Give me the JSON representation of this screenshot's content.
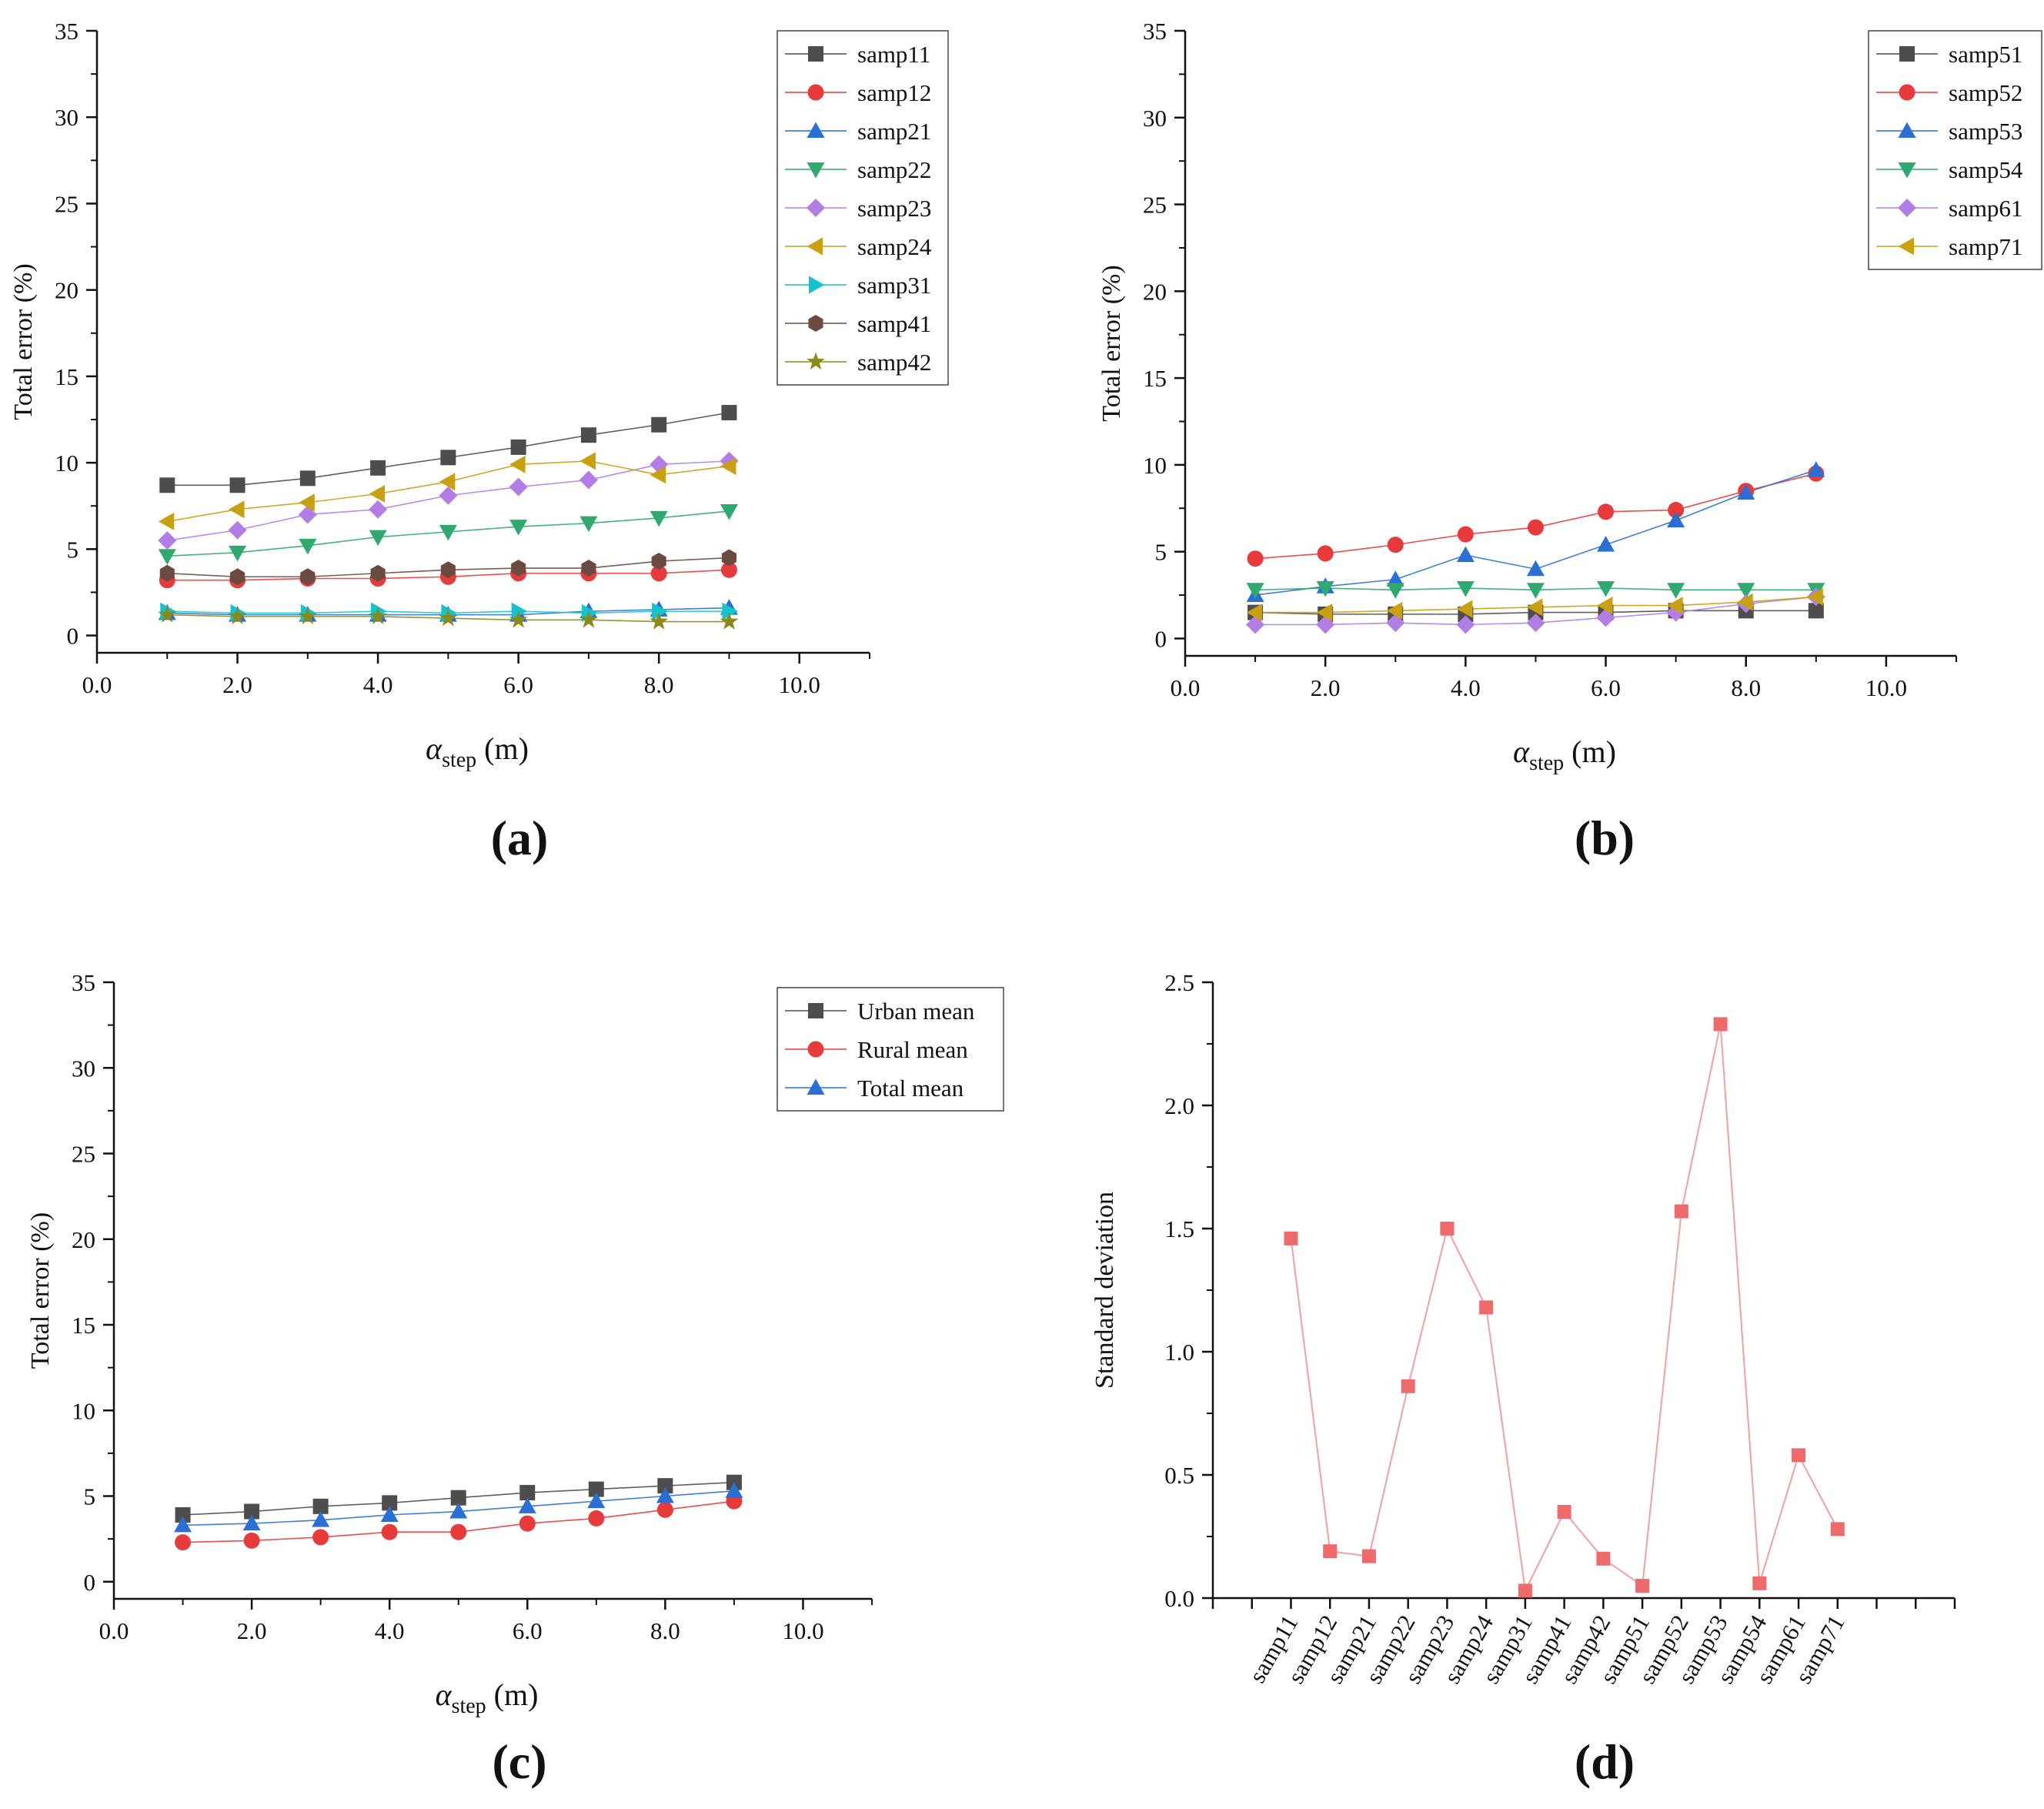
{
  "figure": {
    "panel_labels": [
      "(a)",
      "(b)",
      "(c)",
      "(d)"
    ]
  },
  "chart_data": [
    {
      "panel": "a",
      "type": "line",
      "title": "",
      "xlabel_main": "α",
      "xlabel_sub": "step",
      "xlabel_unit": " (m)",
      "ylabel": "Total error (%)",
      "xlim": [
        0,
        11
      ],
      "ylim": [
        -1,
        35
      ],
      "xticks": [
        0,
        2,
        4,
        6,
        8,
        10
      ],
      "xtick_labels": [
        "0.0",
        "2.0",
        "4.0",
        "6.0",
        "8.0",
        "10.0"
      ],
      "yticks": [
        0,
        5,
        10,
        15,
        20,
        25,
        30,
        35
      ],
      "ytick_labels": [
        "0",
        "5",
        "10",
        "15",
        "20",
        "25",
        "30",
        "35"
      ],
      "legend_position": "top-right",
      "x": [
        1,
        2,
        3,
        4,
        5,
        6,
        7,
        8,
        9
      ],
      "series": [
        {
          "name": "samp11",
          "marker": "square",
          "color": "#4d4d4d",
          "values": [
            8.7,
            8.7,
            9.1,
            9.7,
            10.3,
            10.9,
            11.6,
            12.2,
            12.9
          ]
        },
        {
          "name": "samp12",
          "marker": "circle",
          "color": "#e83a3a",
          "values": [
            3.2,
            3.2,
            3.3,
            3.3,
            3.4,
            3.6,
            3.6,
            3.6,
            3.8
          ]
        },
        {
          "name": "samp21",
          "marker": "triangle-up",
          "color": "#2a6fd6",
          "values": [
            1.3,
            1.2,
            1.2,
            1.2,
            1.2,
            1.2,
            1.4,
            1.5,
            1.6
          ]
        },
        {
          "name": "samp22",
          "marker": "triangle-down",
          "color": "#2eaa6e",
          "values": [
            4.6,
            4.8,
            5.2,
            5.7,
            6.0,
            6.3,
            6.5,
            6.8,
            7.2
          ]
        },
        {
          "name": "samp23",
          "marker": "diamond",
          "color": "#b27ee6",
          "values": [
            5.5,
            6.1,
            7.0,
            7.3,
            8.1,
            8.6,
            9.0,
            9.9,
            10.1
          ]
        },
        {
          "name": "samp24",
          "marker": "triangle-left",
          "color": "#c9a010",
          "values": [
            6.6,
            7.3,
            7.7,
            8.2,
            8.9,
            9.9,
            10.1,
            9.3,
            9.8
          ]
        },
        {
          "name": "samp31",
          "marker": "triangle-right",
          "color": "#14c4cc",
          "values": [
            1.4,
            1.3,
            1.3,
            1.4,
            1.3,
            1.4,
            1.3,
            1.4,
            1.4
          ]
        },
        {
          "name": "samp41",
          "marker": "hexagon",
          "color": "#6b4a40",
          "values": [
            3.6,
            3.4,
            3.4,
            3.6,
            3.8,
            3.9,
            3.9,
            4.3,
            4.5
          ]
        },
        {
          "name": "samp42",
          "marker": "star",
          "color": "#8a8a1a",
          "values": [
            1.2,
            1.1,
            1.1,
            1.1,
            1.0,
            0.9,
            0.9,
            0.8,
            0.8
          ]
        }
      ]
    },
    {
      "panel": "b",
      "type": "line",
      "title": "",
      "xlabel_main": "α",
      "xlabel_sub": "step",
      "xlabel_unit": " (m)",
      "ylabel": "Total error (%)",
      "xlim": [
        0,
        11
      ],
      "ylim": [
        -1,
        35
      ],
      "xticks": [
        0,
        2,
        4,
        6,
        8,
        10
      ],
      "xtick_labels": [
        "0.0",
        "2.0",
        "4.0",
        "6.0",
        "8.0",
        "10.0"
      ],
      "yticks": [
        0,
        5,
        10,
        15,
        20,
        25,
        30,
        35
      ],
      "ytick_labels": [
        "0",
        "5",
        "10",
        "15",
        "20",
        "25",
        "30",
        "35"
      ],
      "legend_position": "top-right",
      "x": [
        1,
        2,
        3,
        4,
        5,
        6,
        7,
        8,
        9
      ],
      "series": [
        {
          "name": "samp51",
          "marker": "square",
          "color": "#4d4d4d",
          "values": [
            1.5,
            1.4,
            1.4,
            1.4,
            1.5,
            1.5,
            1.6,
            1.6,
            1.6
          ]
        },
        {
          "name": "samp52",
          "marker": "circle",
          "color": "#e83a3a",
          "values": [
            4.6,
            4.9,
            5.4,
            6.0,
            6.4,
            7.3,
            7.4,
            8.5,
            9.5
          ]
        },
        {
          "name": "samp53",
          "marker": "triangle-up",
          "color": "#2a6fd6",
          "values": [
            2.5,
            3.0,
            3.4,
            4.8,
            4.0,
            5.4,
            6.8,
            8.4,
            9.7
          ]
        },
        {
          "name": "samp54",
          "marker": "triangle-down",
          "color": "#2eaa6e",
          "values": [
            2.8,
            2.9,
            2.8,
            2.9,
            2.8,
            2.9,
            2.8,
            2.8,
            2.8
          ]
        },
        {
          "name": "samp61",
          "marker": "diamond",
          "color": "#b27ee6",
          "values": [
            0.8,
            0.8,
            0.9,
            0.8,
            0.9,
            1.2,
            1.5,
            2.0,
            2.4
          ]
        },
        {
          "name": "samp71",
          "marker": "triangle-left",
          "color": "#c9a010",
          "values": [
            1.5,
            1.5,
            1.6,
            1.7,
            1.8,
            1.9,
            1.9,
            2.1,
            2.4
          ]
        }
      ]
    },
    {
      "panel": "c",
      "type": "line",
      "title": "",
      "xlabel_main": "α",
      "xlabel_sub": "step",
      "xlabel_unit": " (m)",
      "ylabel": "Total error (%)",
      "xlim": [
        0,
        11
      ],
      "ylim": [
        -1,
        35
      ],
      "xticks": [
        0,
        2,
        4,
        6,
        8,
        10
      ],
      "xtick_labels": [
        "0.0",
        "2.0",
        "4.0",
        "6.0",
        "8.0",
        "10.0"
      ],
      "yticks": [
        0,
        5,
        10,
        15,
        20,
        25,
        30,
        35
      ],
      "ytick_labels": [
        "0",
        "5",
        "10",
        "15",
        "20",
        "25",
        "30",
        "35"
      ],
      "legend_position": "top-right",
      "x": [
        1,
        2,
        3,
        4,
        5,
        6,
        7,
        8,
        9
      ],
      "series": [
        {
          "name": "Urban mean",
          "marker": "square",
          "color": "#4d4d4d",
          "values": [
            3.9,
            4.1,
            4.4,
            4.6,
            4.9,
            5.2,
            5.4,
            5.6,
            5.8
          ]
        },
        {
          "name": "Rural mean",
          "marker": "circle",
          "color": "#e83a3a",
          "values": [
            2.3,
            2.4,
            2.6,
            2.9,
            2.9,
            3.4,
            3.7,
            4.2,
            4.7
          ]
        },
        {
          "name": "Total mean",
          "marker": "triangle-up",
          "color": "#2a6fd6",
          "values": [
            3.3,
            3.4,
            3.6,
            3.9,
            4.1,
            4.4,
            4.7,
            5.0,
            5.3
          ]
        }
      ]
    },
    {
      "panel": "d",
      "type": "line",
      "title": "",
      "xlabel": "",
      "ylabel": "Standard deviation",
      "ylim": [
        0,
        2.5
      ],
      "yticks": [
        0,
        0.5,
        1,
        1.5,
        2,
        2.5
      ],
      "ytick_labels": [
        "0.0",
        "0.5",
        "1.0",
        "1.5",
        "2.0",
        "2.5"
      ],
      "categories": [
        "samp11",
        "samp12",
        "samp21",
        "samp22",
        "samp23",
        "samp24",
        "samp31",
        "samp41",
        "samp42",
        "samp51",
        "samp52",
        "samp53",
        "samp54",
        "samp61",
        "samp71"
      ],
      "series": [
        {
          "name": "Standard deviation",
          "marker": "square",
          "color": "#ef6a6a",
          "values": [
            1.46,
            0.19,
            0.17,
            0.86,
            1.5,
            1.18,
            0.03,
            0.35,
            0.16,
            0.05,
            1.57,
            2.33,
            0.06,
            0.58,
            0.28
          ]
        }
      ]
    }
  ]
}
